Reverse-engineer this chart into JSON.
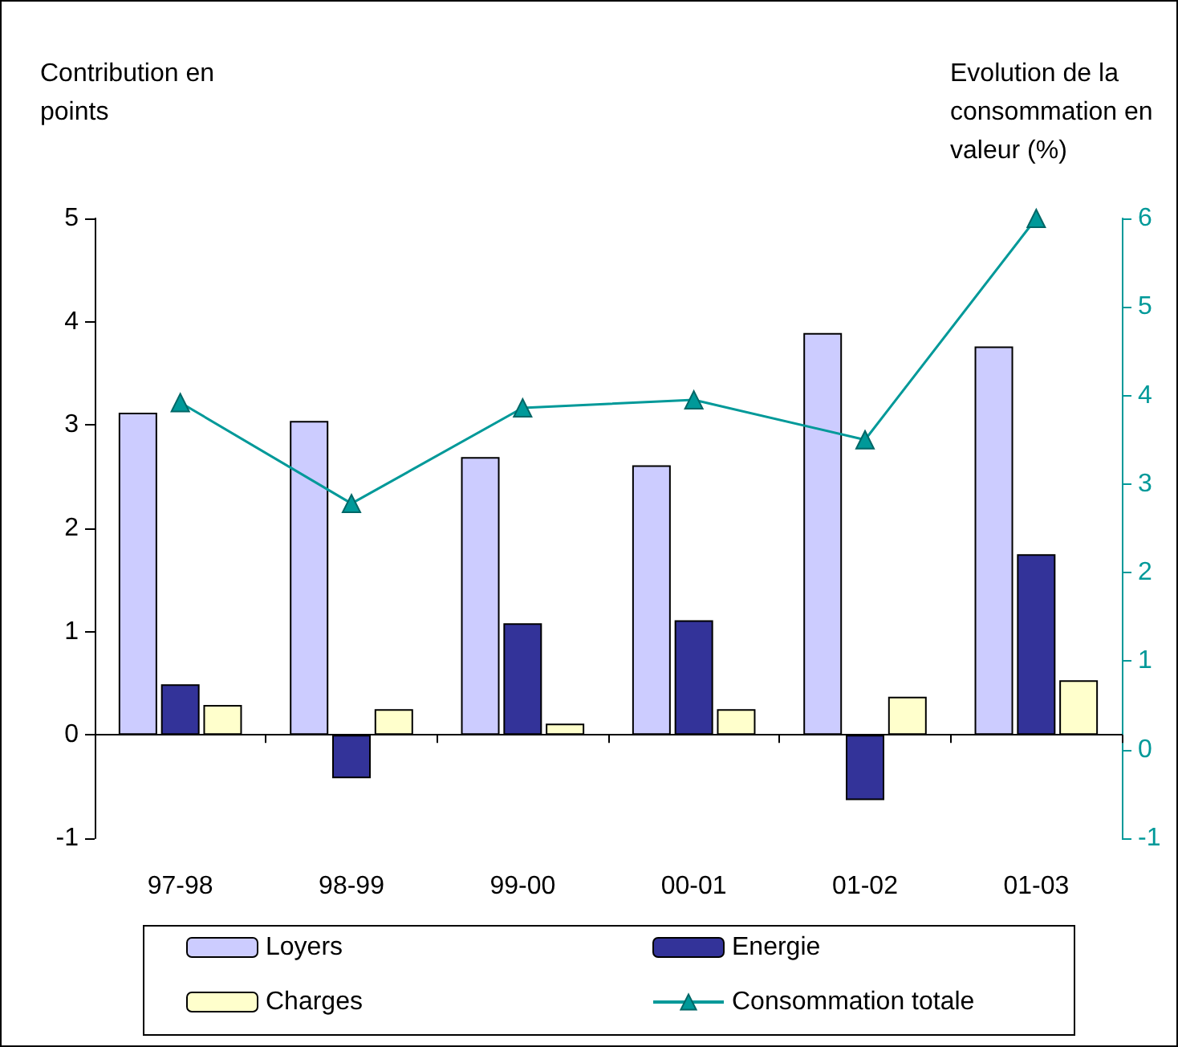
{
  "chart_data": {
    "type": "bar",
    "ylabel": "Contribution en points",
    "y2label": "Evolution de la consommation en valeur (%)",
    "categories": [
      "97-98",
      "98-99",
      "99-00",
      "00-01",
      "01-02",
      "01-03"
    ],
    "series": [
      {
        "name": "Loyers",
        "color": "#ccccff",
        "values": [
          3.12,
          3.04,
          2.69,
          2.61,
          3.89,
          3.76
        ]
      },
      {
        "name": "Energie",
        "color": "#333399",
        "values": [
          0.49,
          -0.42,
          1.08,
          1.11,
          -0.63,
          1.75
        ]
      },
      {
        "name": "Charges",
        "color": "#ffffcc",
        "values": [
          0.29,
          0.25,
          0.11,
          0.25,
          0.37,
          0.53
        ]
      },
      {
        "name": "Consommation totale",
        "type": "line",
        "axis": "y2",
        "color": "#009999",
        "marker": "triangle",
        "values": [
          3.92,
          2.78,
          3.86,
          3.95,
          3.5,
          6.0
        ]
      }
    ],
    "ylim": [
      -1,
      5
    ],
    "yticks": [
      -1,
      0,
      1,
      2,
      3,
      4,
      5
    ],
    "y2lim": [
      -1,
      6
    ],
    "y2ticks": [
      -1,
      0,
      1,
      2,
      3,
      4,
      5,
      6
    ],
    "legend": "bottom"
  }
}
